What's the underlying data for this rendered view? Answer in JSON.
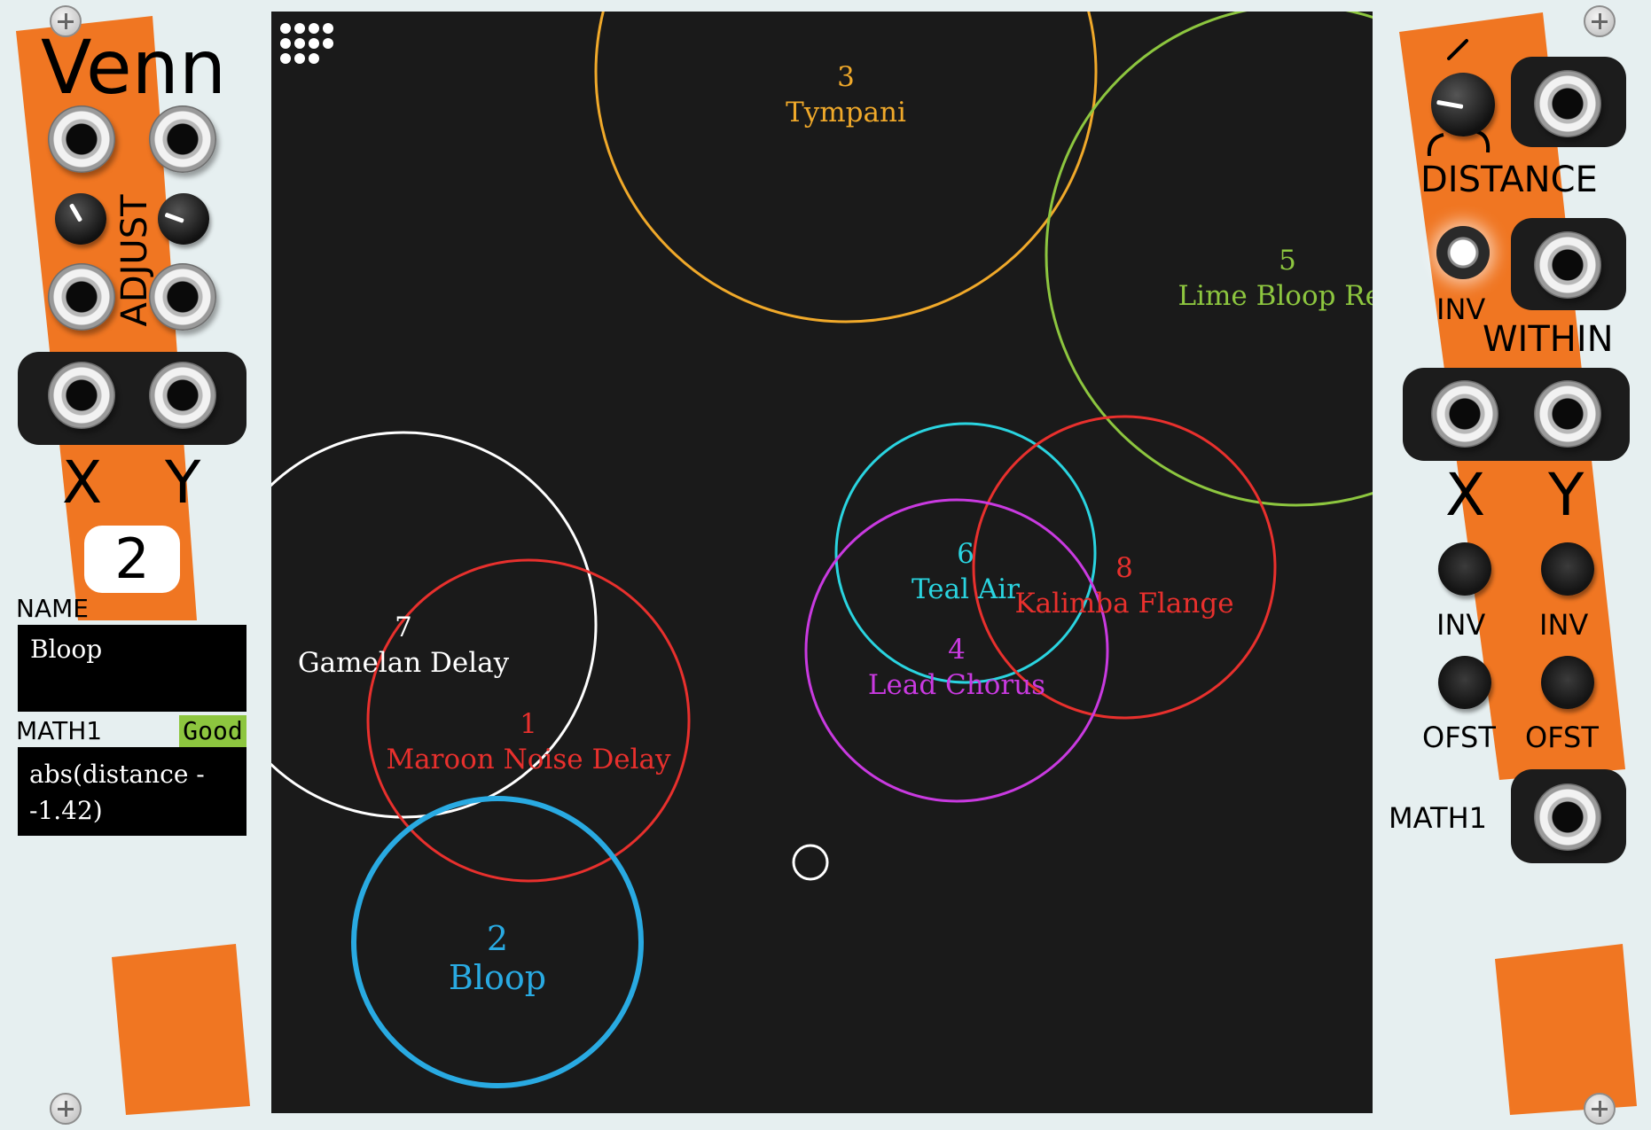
{
  "module": {
    "title": "Venn",
    "adjust_label": "ADJUST",
    "x_label": "X",
    "y_label": "Y",
    "selected_number": "2",
    "name_label": "NAME",
    "name_value": "Bloop",
    "math_label": "MATH1",
    "math_status": "Good",
    "math_expression": "abs(distance - -1.42)",
    "math_expression_line1": "abs(distance -",
    "math_expression_line2": "-1.42)"
  },
  "right_panel": {
    "distance_label": "DISTANCE",
    "inv_label": "INV",
    "within_label": "WITHIN",
    "x_label": "X",
    "y_label": "Y",
    "x_inv_label": "INV",
    "y_inv_label": "INV",
    "x_ofst_label": "OFST",
    "y_ofst_label": "OFST",
    "math_out_label": "MATH1"
  },
  "circles": [
    {
      "number": "3",
      "name": "Tympani",
      "color": "#f0a92a"
    },
    {
      "number": "5",
      "name": "Lime Bloop Rev",
      "color": "#8dc63f"
    },
    {
      "number": "7",
      "name": "Gamelan Delay",
      "color": "#ffffff"
    },
    {
      "number": "1",
      "name": "Maroon Noise Delay",
      "color": "#e8302d"
    },
    {
      "number": "2",
      "name": "Bloop",
      "color": "#29aae2",
      "selected": true
    },
    {
      "number": "6",
      "name": "Teal Air",
      "color": "#2ad4e0"
    },
    {
      "number": "8",
      "name": "Kalimba Flange",
      "color": "#e8302d"
    },
    {
      "number": "4",
      "name": "Lead Chorus",
      "color": "#c93ae0"
    }
  ],
  "colors": {
    "orange": "#f07622",
    "panel": "#e6eff0",
    "screen": "#1a1a1a",
    "good_badge": "#8dc63f"
  }
}
